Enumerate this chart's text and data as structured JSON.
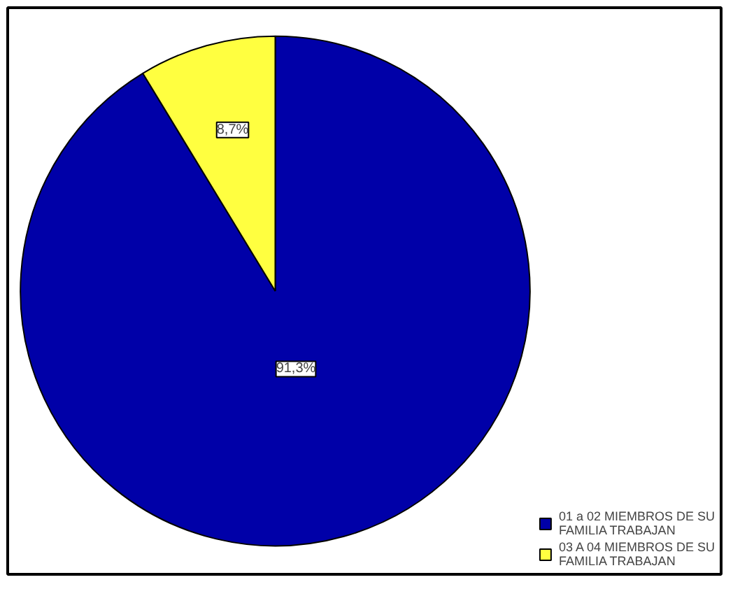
{
  "chart_data": {
    "type": "pie",
    "categories": [
      "01 a 02 MIEMBROS DE SU\nFAMILIA TRABAJAN",
      "03 A 04 MIEMBROS DE SU\nFAMILIA TRABAJAN"
    ],
    "values": [
      91.3,
      8.7
    ],
    "colors": [
      "#0000a8",
      "#ffff40"
    ],
    "value_labels": [
      "91,3%",
      "8,7%"
    ],
    "legend": "bottom right"
  }
}
